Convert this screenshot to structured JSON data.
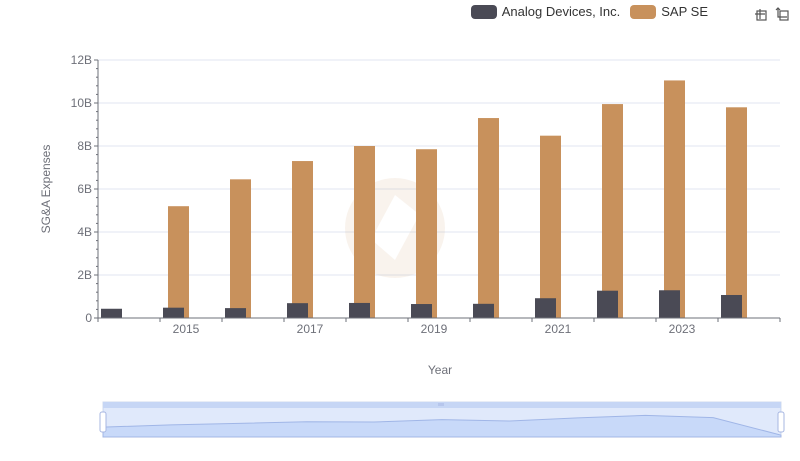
{
  "legend": {
    "items": [
      {
        "label": "Analog Devices, Inc.",
        "color": "#4a4a55"
      },
      {
        "label": "SAP SE",
        "color": "#c8915c"
      }
    ]
  },
  "toolbox": {
    "icons": [
      "zoom-icon",
      "restore-icon"
    ]
  },
  "chart_data": {
    "type": "bar",
    "xlabel": "Year",
    "ylabel": "SG&A Expenses",
    "ylim": [
      0,
      12000000000
    ],
    "yticks": [
      "0",
      "2B",
      "4B",
      "6B",
      "8B",
      "10B",
      "12B"
    ],
    "xtick_labels": [
      "2015",
      "2017",
      "2019",
      "2021",
      "2023"
    ],
    "categories": [
      "2014",
      "2015",
      "2016",
      "2017",
      "2018",
      "2019",
      "2020",
      "2021",
      "2022",
      "2023",
      "2024"
    ],
    "series": [
      {
        "name": "Analog Devices, Inc.",
        "color": "#4a4a55",
        "values": [
          430000000,
          480000000,
          460000000,
          690000000,
          700000000,
          650000000,
          660000000,
          920000000,
          1270000000,
          1290000000,
          1070000000
        ]
      },
      {
        "name": "SAP SE",
        "color": "#c8915c",
        "values": [
          5200000000,
          6450000000,
          7300000000,
          8000000000,
          7850000000,
          9300000000,
          8480000000,
          9950000000,
          11050000000,
          9800000000,
          null
        ]
      }
    ],
    "grid": true,
    "legend_position": "top-right"
  }
}
